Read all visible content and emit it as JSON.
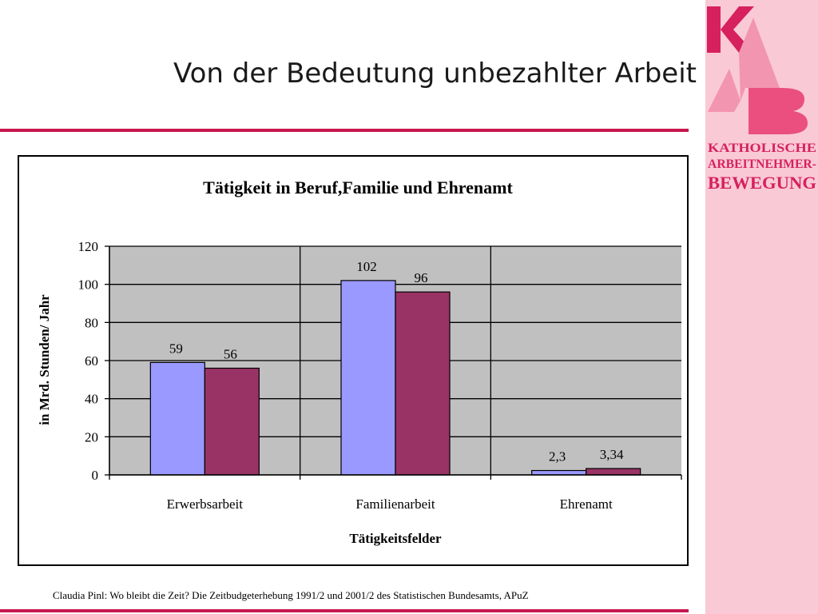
{
  "slide": {
    "title": "Von der Bedeutung unbezahlter Arbeit",
    "source": "Claudia Pinl: Wo bleibt die Zeit? Die Zeitbudgeterhebung 1991/2 und 2001/2 des Statistischen Bundesamts, APuZ"
  },
  "logo": {
    "letters": [
      "K",
      "A",
      "B"
    ],
    "lines": [
      "KATHOLISCHE",
      "ARBEITNEHMER-",
      "BEWEGUNG"
    ]
  },
  "colors": {
    "accent": "#c8174f",
    "band": "#f9c9d6",
    "plot_bg": "#c0c0c0",
    "series_1": "#9999ff",
    "series_2": "#993366"
  },
  "chart_data": {
    "type": "bar",
    "title": "Tätigkeit in Beruf,Familie und Ehrenamt",
    "xlabel": "Tätigkeitsfelder",
    "ylabel": "in Mrd. Stunden/ Jahr",
    "categories": [
      "Erwerbsarbeit",
      "Familienarbeit",
      "Ehrenamt"
    ],
    "series": [
      {
        "values": [
          59,
          102,
          2.3
        ],
        "labels": [
          "59",
          "102",
          "2,3"
        ],
        "color": "#9999ff"
      },
      {
        "values": [
          56,
          96,
          3.34
        ],
        "labels": [
          "56",
          "96",
          "3,34"
        ],
        "color": "#993366"
      }
    ],
    "ylim": [
      0,
      120
    ],
    "yticks": [
      0,
      20,
      40,
      60,
      80,
      100,
      120
    ],
    "grid": true,
    "legend": "none"
  }
}
